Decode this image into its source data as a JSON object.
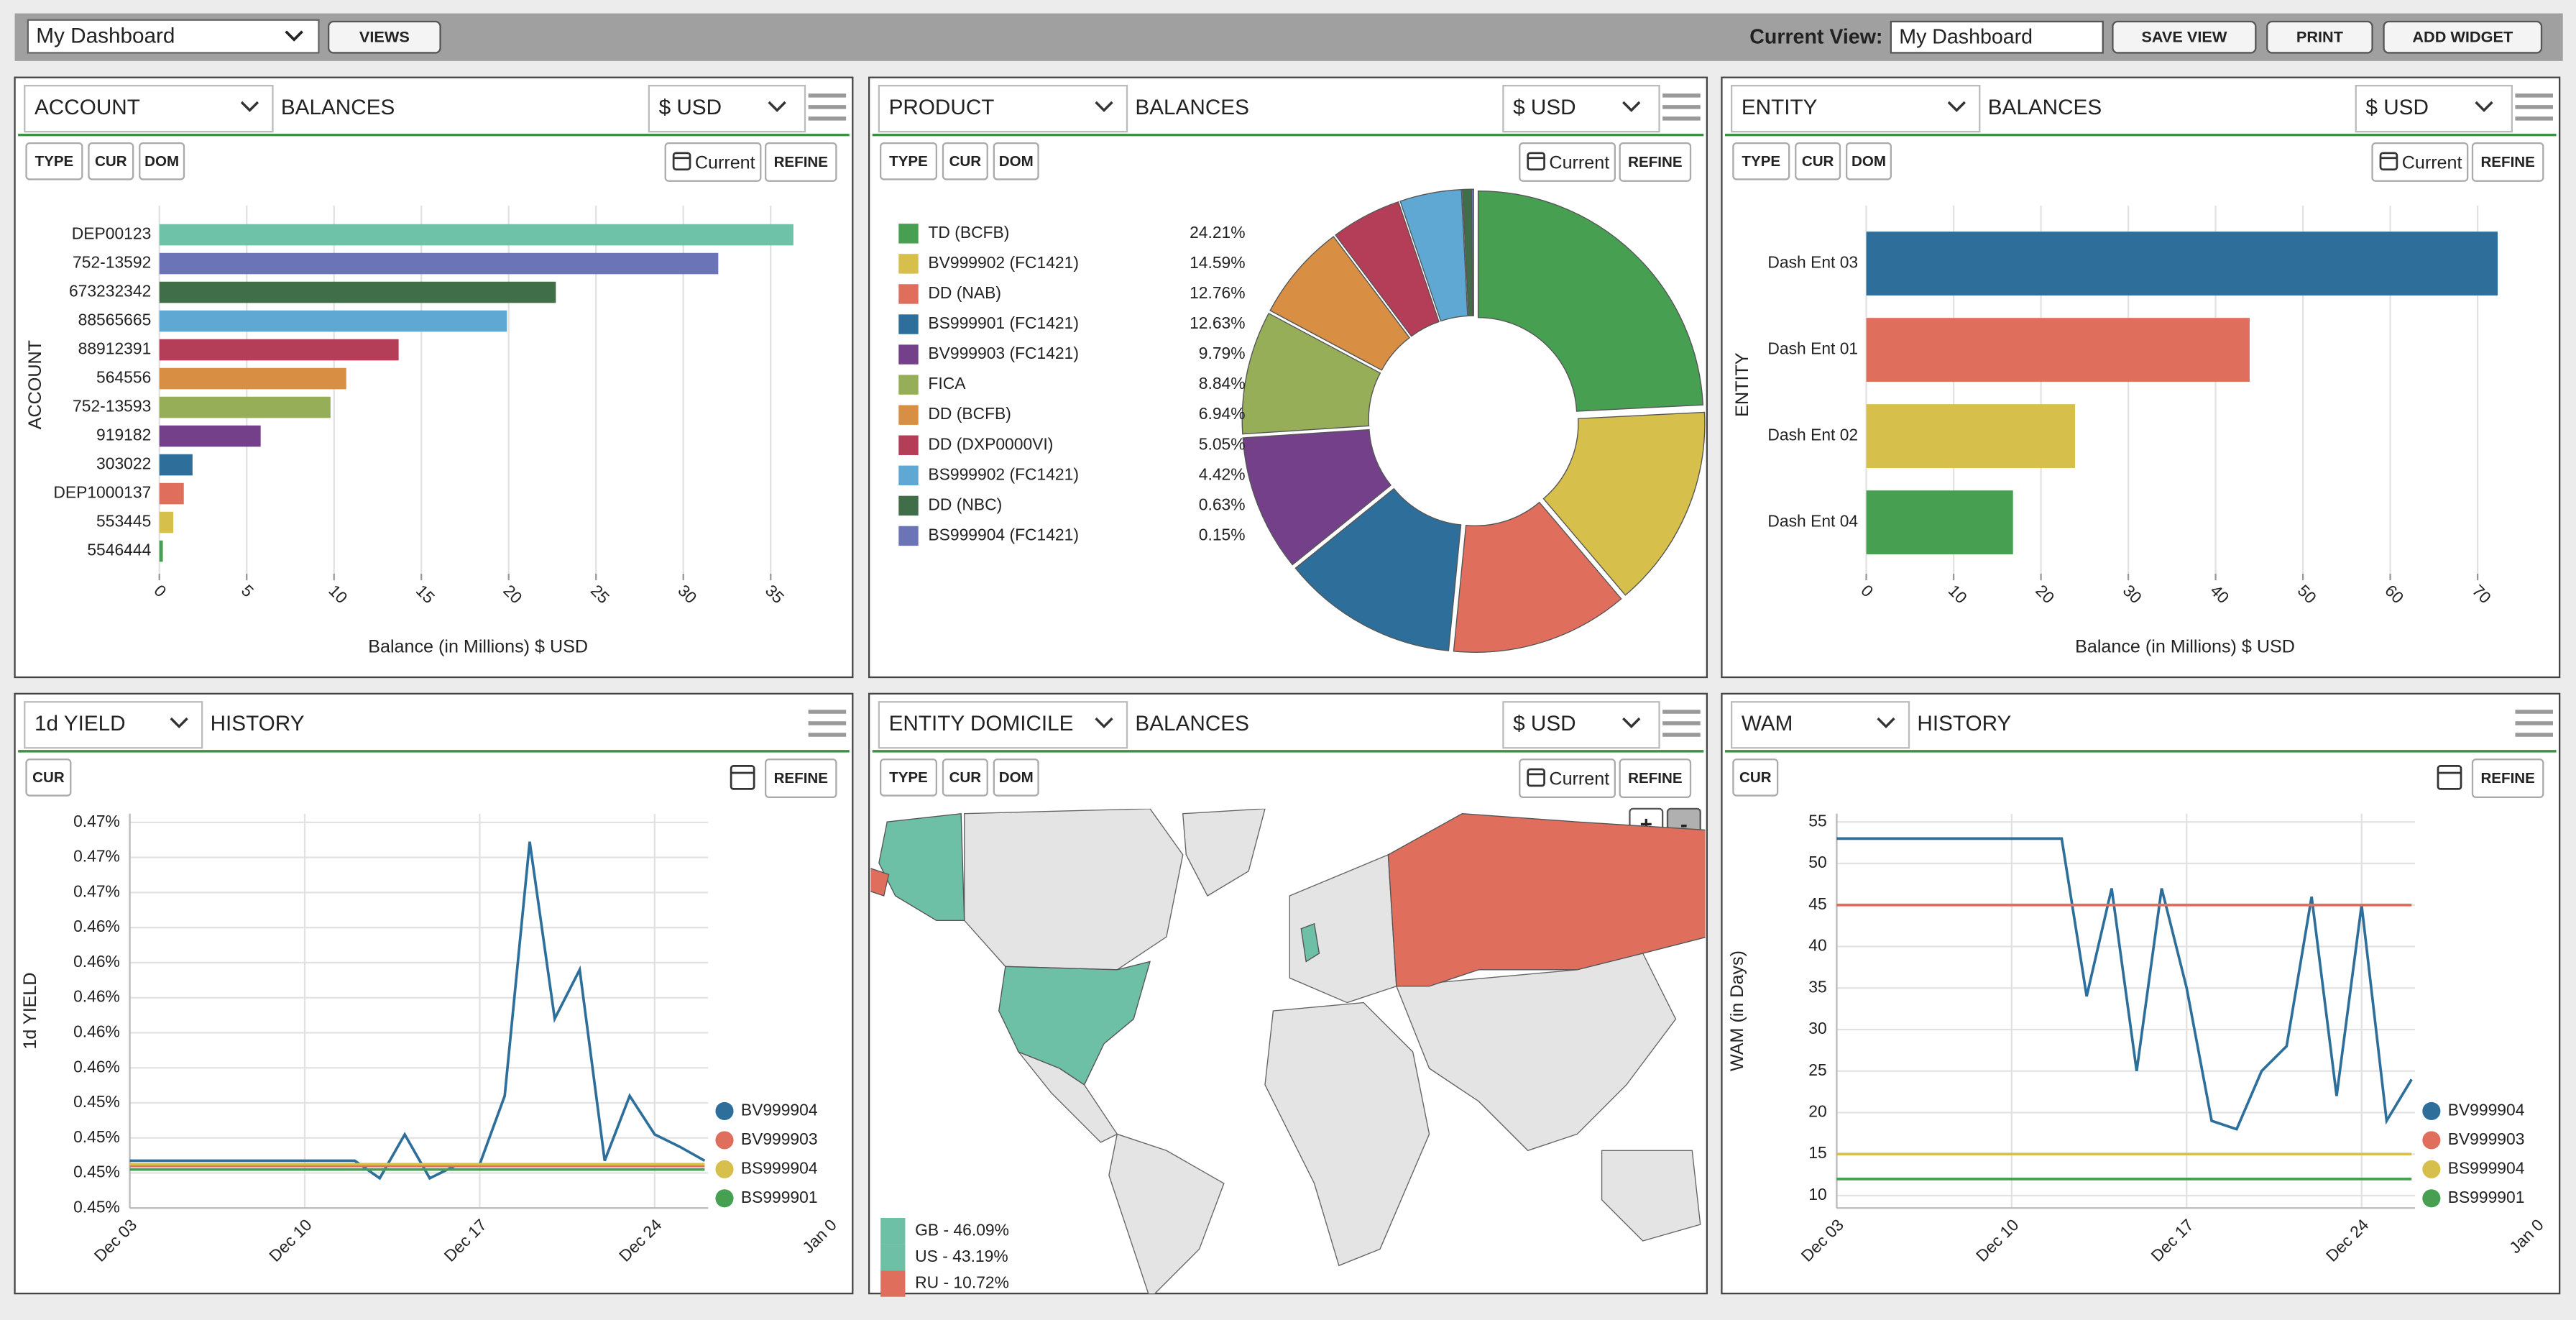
{
  "toolbar": {
    "dashboard_select": "My Dashboard",
    "views_button": "VIEWS",
    "current_view_label": "Current View:",
    "current_view_input": "My Dashboard",
    "buttons": [
      "SAVE VIEW",
      "PRINT",
      "ADD WIDGET"
    ]
  },
  "widgets": [
    {
      "dimension": "ACCOUNT",
      "measure": "BALANCES",
      "currency": "$ USD",
      "filters": [
        "TYPE",
        "CUR",
        "DOM"
      ],
      "date": "Current",
      "refine": "REFINE"
    },
    {
      "dimension": "PRODUCT",
      "measure": "BALANCES",
      "currency": "$ USD",
      "filters": [
        "TYPE",
        "CUR",
        "DOM"
      ],
      "date": "Current",
      "refine": "REFINE"
    },
    {
      "dimension": "ENTITY",
      "measure": "BALANCES",
      "currency": "$ USD",
      "filters": [
        "TYPE",
        "CUR",
        "DOM"
      ],
      "date": "Current",
      "refine": "REFINE"
    },
    {
      "dimension": "1d YIELD",
      "measure": "HISTORY",
      "filters": [
        "CUR"
      ],
      "refine": "REFINE"
    },
    {
      "dimension": "ENTITY DOMICILE",
      "measure": "BALANCES",
      "currency": "$ USD",
      "filters": [
        "TYPE",
        "CUR",
        "DOM"
      ],
      "date": "Current",
      "refine": "REFINE",
      "zoom": [
        "+",
        "-"
      ]
    },
    {
      "dimension": "WAM",
      "measure": "HISTORY",
      "filters": [
        "CUR"
      ],
      "refine": "REFINE"
    }
  ],
  "chart_data": [
    {
      "type": "bar",
      "orientation": "horizontal",
      "categories": [
        "DEP00123",
        "752-13592",
        "673232342",
        "88565665",
        "88912391",
        "564556",
        "752-13593",
        "919182",
        "303022",
        "DEP1000137",
        "553445",
        "5546444"
      ],
      "values": [
        36.3,
        32.0,
        22.7,
        19.9,
        13.7,
        10.7,
        9.8,
        5.8,
        1.9,
        1.4,
        0.8,
        0.2
      ],
      "colors": [
        "#6dc2a8",
        "#6b74b7",
        "#3f6e48",
        "#5ea8d3",
        "#b43e57",
        "#d88f44",
        "#97ae59",
        "#74408a",
        "#2d6f9a",
        "#df6e5d",
        "#d7bf4c",
        "#47a051"
      ],
      "xlim": [
        0,
        38
      ],
      "xticks": [
        0,
        5,
        10,
        15,
        20,
        25,
        30,
        35
      ],
      "grid": true,
      "x_label": "Balance (in Millions) $ USD",
      "y_label": "ACCOUNT"
    },
    {
      "type": "donut",
      "categories": [
        "TD (BCFB)",
        "BV999902 (FC1421)",
        "DD (NAB)",
        "BS999901 (FC1421)",
        "BV999903 (FC1421)",
        "FICA",
        "DD (BCFB)",
        "DD (DXP0000VI)",
        "BS999902 (FC1421)",
        "DD (NBC)",
        "BS999904 (FC1421)"
      ],
      "values": [
        24.21,
        14.59,
        12.76,
        12.63,
        9.79,
        8.84,
        6.94,
        5.05,
        4.42,
        0.63,
        0.15
      ],
      "value_labels": [
        "24.21%",
        "14.59%",
        "12.76%",
        "12.63%",
        "9.79%",
        "8.84%",
        "6.94%",
        "5.05%",
        "4.42%",
        "0.63%",
        "0.15%"
      ],
      "colors": [
        "#47a051",
        "#d7bf4c",
        "#df6e5d",
        "#2d6f9a",
        "#74408a",
        "#97ae59",
        "#d88f44",
        "#b43e57",
        "#5ea8d3",
        "#3f6e48",
        "#6b74b7"
      ]
    },
    {
      "type": "bar",
      "orientation": "horizontal",
      "categories": [
        "Dash Ent 03",
        "Dash Ent 01",
        "Dash Ent 02",
        "Dash Ent 04"
      ],
      "values": [
        72.3,
        43.9,
        23.9,
        16.8
      ],
      "colors": [
        "#2d6f9a",
        "#df6e5d",
        "#d7bf4c",
        "#47a051"
      ],
      "xlim": [
        0,
        76
      ],
      "xticks": [
        0,
        10,
        20,
        30,
        40,
        50,
        60,
        70
      ],
      "grid": true,
      "x_label": "Balance (in Millions) $ USD",
      "y_label": "ENTITY"
    },
    {
      "type": "line",
      "x": [
        "Dec 03",
        "Dec 04",
        "Dec 05",
        "Dec 06",
        "Dec 07",
        "Dec 08",
        "Dec 09",
        "Dec 10",
        "Dec 11",
        "Dec 12",
        "Dec 13",
        "Dec 14",
        "Dec 15",
        "Dec 16",
        "Dec 17",
        "Dec 18",
        "Dec 19",
        "Dec 20",
        "Dec 21",
        "Dec 22",
        "Dec 23",
        "Dec 24",
        "Dec 25",
        "Dec 26"
      ],
      "xticks": [
        "Dec 03",
        "Dec 10",
        "Dec 17",
        "Dec 24",
        "Jan 0"
      ],
      "ylim": [
        0.4485,
        0.471
      ],
      "yticks": [
        {
          "value": 0.4485,
          "label": "0.45%"
        },
        {
          "value": 0.4505,
          "label": "0.45%"
        },
        {
          "value": 0.4525,
          "label": "0.45%"
        },
        {
          "value": 0.4545,
          "label": "0.45%"
        },
        {
          "value": 0.4565,
          "label": "0.46%"
        },
        {
          "value": 0.4585,
          "label": "0.46%"
        },
        {
          "value": 0.4605,
          "label": "0.46%"
        },
        {
          "value": 0.4625,
          "label": "0.46%"
        },
        {
          "value": 0.4645,
          "label": "0.46%"
        },
        {
          "value": 0.4665,
          "label": "0.47%"
        },
        {
          "value": 0.4685,
          "label": "0.47%"
        },
        {
          "value": 0.4705,
          "label": "0.47%"
        }
      ],
      "grid": true,
      "y_label": "1d YIELD",
      "series": [
        {
          "name": "BV999904",
          "color": "#2d6f9a",
          "values": [
            0.4512,
            0.4512,
            0.4512,
            0.4512,
            0.4512,
            0.4512,
            0.4512,
            0.4512,
            0.4512,
            0.4512,
            0.4502,
            0.4527,
            0.4502,
            0.4509,
            0.451,
            0.4549,
            0.4694,
            0.4593,
            0.4621,
            0.4512,
            0.4549,
            0.4527,
            0.452,
            0.4512
          ]
        },
        {
          "name": "BV999903",
          "color": "#df6e5d",
          "values": [
            0.4509,
            0.4509,
            0.4509,
            0.4509,
            0.4509,
            0.4509,
            0.4509,
            0.4509,
            0.4509,
            0.4509,
            0.4509,
            0.4509,
            0.4509,
            0.4509,
            0.4509,
            0.4509,
            0.4509,
            0.4509,
            0.4509,
            0.4509,
            0.4509,
            0.4509,
            0.4509,
            0.4509
          ]
        },
        {
          "name": "BS999904",
          "color": "#d7bf4c",
          "values": [
            0.451,
            0.451,
            0.451,
            0.451,
            0.451,
            0.451,
            0.451,
            0.451,
            0.451,
            0.451,
            0.451,
            0.451,
            0.451,
            0.451,
            0.451,
            0.451,
            0.451,
            0.451,
            0.451,
            0.451,
            0.451,
            0.451,
            0.451,
            0.451
          ]
        },
        {
          "name": "BS999901",
          "color": "#47a051",
          "values": [
            0.4507,
            0.4507,
            0.4507,
            0.4507,
            0.4507,
            0.4507,
            0.4507,
            0.4507,
            0.4507,
            0.4507,
            0.4507,
            0.4507,
            0.4507,
            0.4507,
            0.4507,
            0.4507,
            0.4507,
            0.4507,
            0.4507,
            0.4507,
            0.4507,
            0.4507,
            0.4507,
            0.4507
          ]
        }
      ]
    },
    {
      "type": "map",
      "categories": [
        "GB",
        "US",
        "RU"
      ],
      "values": [
        46.09,
        43.19,
        10.72
      ],
      "value_labels": [
        "GB - 46.09%",
        "US - 43.19%",
        "RU - 10.72%"
      ],
      "colors": [
        "#6dbfa5",
        "#6dbfa5",
        "#df6e5d"
      ]
    },
    {
      "type": "line",
      "x": [
        "Dec 03",
        "Dec 04",
        "Dec 05",
        "Dec 06",
        "Dec 07",
        "Dec 08",
        "Dec 09",
        "Dec 10",
        "Dec 11",
        "Dec 12",
        "Dec 13",
        "Dec 14",
        "Dec 15",
        "Dec 16",
        "Dec 17",
        "Dec 18",
        "Dec 19",
        "Dec 20",
        "Dec 21",
        "Dec 22",
        "Dec 23",
        "Dec 24",
        "Dec 25",
        "Dec 26"
      ],
      "xticks": [
        "Dec 03",
        "Dec 10",
        "Dec 17",
        "Dec 24",
        "Jan 0"
      ],
      "ylim": [
        8.5,
        56
      ],
      "yticks": [
        10,
        15,
        20,
        25,
        30,
        35,
        40,
        45,
        50,
        55
      ],
      "grid": true,
      "y_label": "WAM (in Days)",
      "series": [
        {
          "name": "BV999904",
          "color": "#2d6f9a",
          "values": [
            53,
            53,
            53,
            53,
            53,
            53,
            53,
            53,
            53,
            53,
            34,
            47,
            25,
            47,
            35,
            19,
            18,
            25,
            28,
            46,
            22,
            45,
            19,
            24
          ]
        },
        {
          "name": "BV999903",
          "color": "#df6e5d",
          "values": [
            45,
            45,
            45,
            45,
            45,
            45,
            45,
            45,
            45,
            45,
            45,
            45,
            45,
            45,
            45,
            45,
            45,
            45,
            45,
            45,
            45,
            45,
            45,
            45
          ]
        },
        {
          "name": "BS999904",
          "color": "#d7bf4c",
          "values": [
            15,
            15,
            15,
            15,
            15,
            15,
            15,
            15,
            15,
            15,
            15,
            15,
            15,
            15,
            15,
            15,
            15,
            15,
            15,
            15,
            15,
            15,
            15,
            15
          ]
        },
        {
          "name": "BS999901",
          "color": "#47a051",
          "values": [
            12,
            12,
            12,
            12,
            12,
            12,
            12,
            12,
            12,
            12,
            12,
            12,
            12,
            12,
            12,
            12,
            12,
            12,
            12,
            12,
            12,
            12,
            12,
            12
          ]
        }
      ]
    }
  ]
}
